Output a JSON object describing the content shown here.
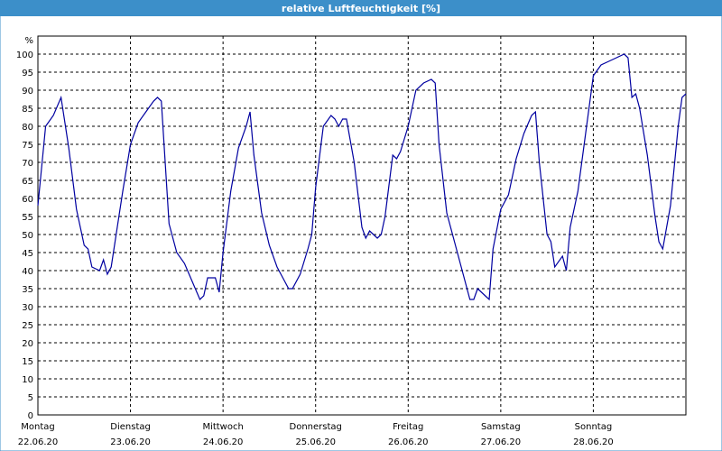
{
  "chart_data": {
    "type": "line",
    "title": "relative Luftfeuchtigkeit [%]",
    "y_label": "%",
    "xlim": [
      0,
      168
    ],
    "xticks": [
      {
        "value": 0,
        "label": "Montag",
        "date": "22.06.20"
      },
      {
        "value": 24,
        "label": "Dienstag",
        "date": "23.06.20"
      },
      {
        "value": 48,
        "label": "Mittwoch",
        "date": "24.06.20"
      },
      {
        "value": 72,
        "label": "Donnerstag",
        "date": "25.06.20"
      },
      {
        "value": 96,
        "label": "Freitag",
        "date": "26.06.20"
      },
      {
        "value": 120,
        "label": "Samstag",
        "date": "27.06.20"
      },
      {
        "value": 144,
        "label": "Sonntag",
        "date": "28.06.20"
      }
    ],
    "ylim": [
      0,
      105
    ],
    "yticks": [
      0,
      5,
      10,
      15,
      20,
      25,
      30,
      35,
      40,
      45,
      50,
      55,
      60,
      65,
      70,
      75,
      80,
      85,
      90,
      95,
      100
    ],
    "grid": true,
    "x": [
      0,
      2,
      4,
      6,
      8,
      10,
      12,
      13,
      14,
      16,
      17,
      18,
      19,
      20,
      22,
      24,
      26,
      28,
      30,
      31,
      32,
      33,
      34,
      36,
      38,
      40,
      42,
      43,
      44,
      46,
      47,
      48,
      50,
      52,
      54,
      55,
      56,
      58,
      60,
      62,
      64,
      65,
      66,
      68,
      70,
      71,
      72,
      74,
      76,
      77,
      78,
      79,
      80,
      82,
      84,
      85,
      86,
      88,
      89,
      90,
      92,
      93,
      94,
      96,
      98,
      100,
      102,
      103,
      104,
      106,
      108,
      110,
      112,
      113,
      114,
      116,
      117,
      118,
      120,
      122,
      124,
      126,
      128,
      129,
      130,
      132,
      133,
      134,
      136,
      137,
      138,
      140,
      142,
      144,
      146,
      148,
      150,
      152,
      153,
      154,
      155,
      156,
      158,
      160,
      161,
      162,
      164,
      166,
      167,
      168
    ],
    "series": [
      {
        "name": "relative Luftfeuchtigkeit",
        "color": "#0000a0",
        "values": [
          58,
          80,
          83,
          88,
          74,
          57,
          47,
          46,
          41,
          40,
          43,
          39,
          41,
          48,
          62,
          75,
          81,
          84,
          87,
          88,
          87,
          70,
          53,
          45,
          42,
          37,
          32,
          33,
          38,
          38,
          34,
          45,
          62,
          74,
          80,
          84,
          72,
          56,
          47,
          41,
          37,
          35,
          35,
          39,
          46,
          50,
          63,
          80,
          83,
          82,
          80,
          82,
          82,
          70,
          52,
          49,
          51,
          49,
          50,
          55,
          72,
          71,
          73,
          80,
          90,
          92,
          93,
          92,
          75,
          56,
          48,
          40,
          32,
          32,
          35,
          33,
          32,
          46,
          57,
          61,
          71,
          78,
          83,
          84,
          70,
          50,
          48,
          41,
          44,
          40,
          52,
          62,
          78,
          94,
          97,
          98,
          99,
          100,
          99,
          88,
          89,
          85,
          72,
          55,
          48,
          46,
          58,
          80,
          88,
          89
        ]
      }
    ]
  }
}
